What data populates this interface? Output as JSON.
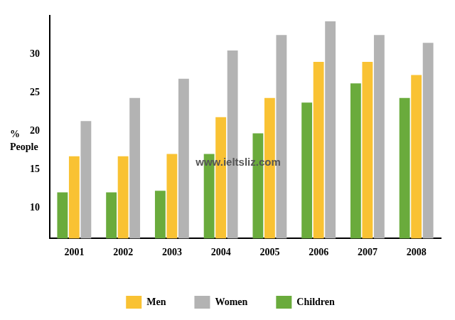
{
  "chart_data": {
    "type": "bar",
    "y_label": "% People",
    "annotations": [
      "www.ieltsliz.com"
    ],
    "categories": [
      "2001",
      "2002",
      "2003",
      "2004",
      "2005",
      "2006",
      "2007",
      "2008"
    ],
    "series": [
      {
        "name": "Children",
        "color": "#6aab3c",
        "values": [
          12,
          12,
          12.2,
          17,
          19.7,
          23.7,
          26.2,
          24.3
        ]
      },
      {
        "name": "Men",
        "color": "#f9c233",
        "values": [
          16.7,
          16.7,
          17,
          21.8,
          24.3,
          29,
          29,
          27.3
        ]
      },
      {
        "name": "Women",
        "color": "#b3b3b3",
        "values": [
          21.3,
          24.3,
          26.8,
          30.5,
          32.5,
          34.3,
          32.5,
          31.5
        ]
      }
    ],
    "ylim": [
      6,
      35
    ],
    "yticks": [
      10,
      15,
      20,
      25,
      30
    ],
    "grid": false,
    "legend": "bottom"
  }
}
